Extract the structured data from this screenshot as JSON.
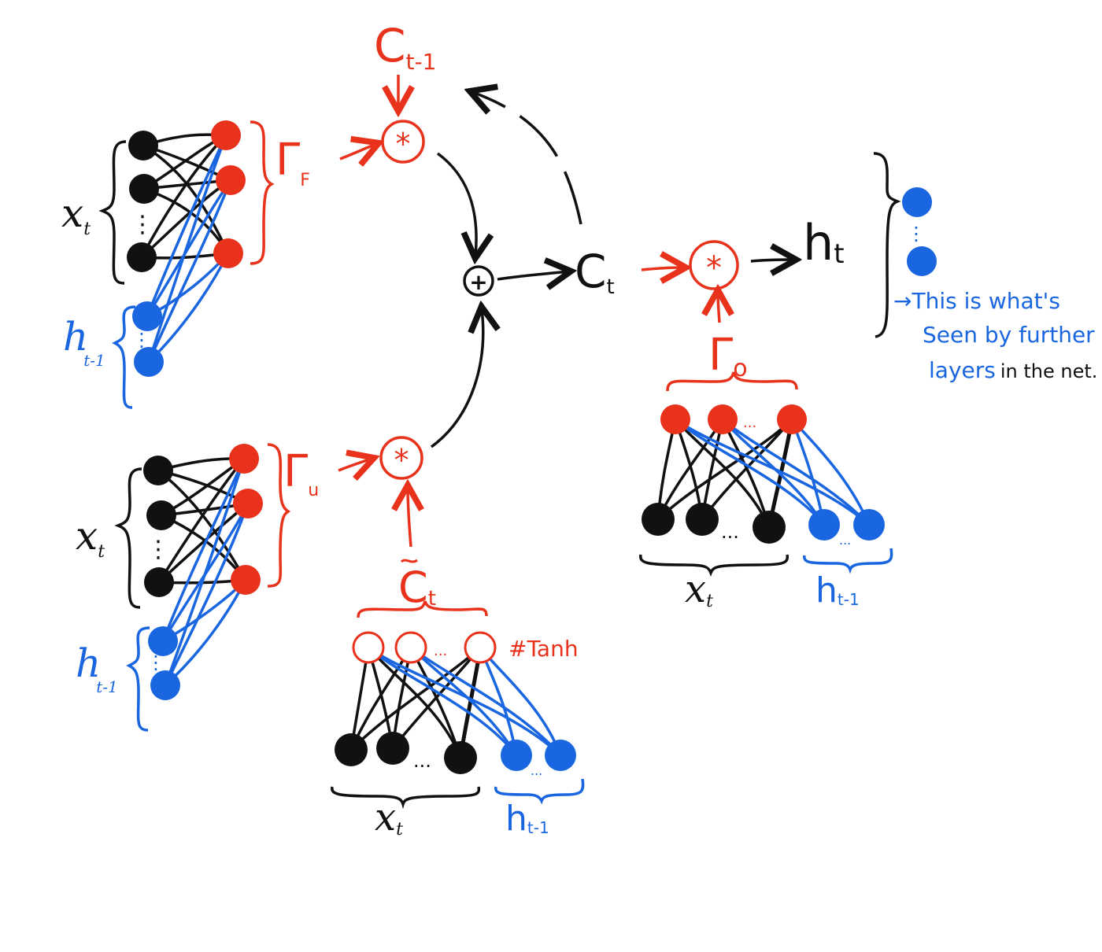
{
  "colors": {
    "ink": "#111111",
    "red": "#e8321c",
    "blue": "#1a66e0",
    "node_black": "#111111",
    "node_red": "#e8321c",
    "node_blue": "#1a66e0"
  },
  "labels": {
    "c_prev": "C",
    "c_prev_sub": "t-1",
    "gamma_f": "Γ",
    "gamma_f_sub": "F",
    "gamma_u": "Γ",
    "gamma_u_sub": "u",
    "gamma_o": "Γ",
    "gamma_o_sub": "o",
    "c_t": "C",
    "c_t_sub": "t",
    "h_t": "h",
    "h_t_sub": "t",
    "c_tilde": "C",
    "c_tilde_sub": "t",
    "tanh_note": "#Tanh",
    "multiply": "*",
    "add": "+",
    "ellipsis": "...",
    "vdots": "⋮"
  },
  "input_labels": {
    "x": "x",
    "x_sub": "t",
    "h": "h",
    "h_sub": "t-1"
  },
  "output_note": {
    "line1_arrow": "→",
    "line1": "This is what's",
    "line2": "Seen by further",
    "line3_blue": "layers",
    "line3_black": "in the net."
  }
}
